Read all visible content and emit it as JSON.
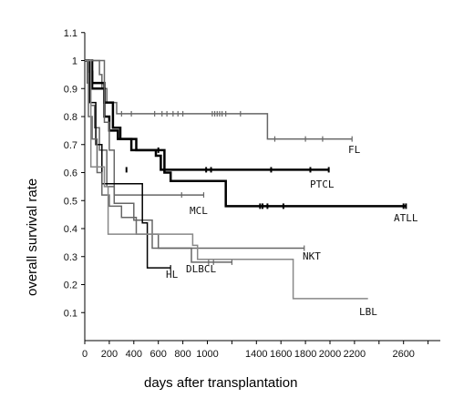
{
  "chart_data": {
    "type": "line",
    "xlabel": "days after transplantation",
    "ylabel": "overall survival rate",
    "xlim": [
      0,
      2900
    ],
    "ylim": [
      0,
      1.1
    ],
    "x_ticks": [
      0,
      200,
      400,
      600,
      800,
      1000,
      1400,
      1600,
      1800,
      2000,
      2200,
      2600
    ],
    "y_ticks": [
      0.1,
      0.2,
      0.3,
      0.4,
      0.5,
      0.6,
      0.7,
      0.8,
      0.9,
      1,
      1.1
    ],
    "x_tick_labels": [
      "0",
      "200",
      "400",
      "600",
      "800",
      "1000",
      "1400",
      "1600",
      "1800",
      "2000",
      "2200",
      "2600"
    ],
    "y_tick_labels": [
      "0.1",
      "0.2",
      "0.3",
      "0.4",
      "0.5",
      "0.6",
      "0.7",
      "0.8",
      "0.9",
      "1",
      "1.1"
    ],
    "series": [
      {
        "name": "FL",
        "color": "#666666",
        "width": 1.5,
        "points": [
          [
            0,
            1
          ],
          [
            120,
            1
          ],
          [
            120,
            0.95
          ],
          [
            140,
            0.95
          ],
          [
            140,
            0.9
          ],
          [
            180,
            0.9
          ],
          [
            180,
            0.85
          ],
          [
            260,
            0.85
          ],
          [
            260,
            0.81
          ],
          [
            1490,
            0.81
          ],
          [
            1490,
            0.72
          ],
          [
            2180,
            0.72
          ]
        ],
        "censors": [
          [
            300,
            0.81
          ],
          [
            380,
            0.81
          ],
          [
            570,
            0.81
          ],
          [
            630,
            0.81
          ],
          [
            670,
            0.81
          ],
          [
            720,
            0.81
          ],
          [
            760,
            0.81
          ],
          [
            800,
            0.81
          ],
          [
            1040,
            0.81
          ],
          [
            1060,
            0.81
          ],
          [
            1080,
            0.81
          ],
          [
            1100,
            0.81
          ],
          [
            1120,
            0.81
          ],
          [
            1150,
            0.81
          ],
          [
            1270,
            0.81
          ],
          [
            1550,
            0.72
          ],
          [
            1800,
            0.72
          ],
          [
            1940,
            0.72
          ],
          [
            2180,
            0.72
          ]
        ]
      },
      {
        "name": "PTCL",
        "color": "#000000",
        "width": 2.5,
        "points": [
          [
            0,
            1
          ],
          [
            60,
            1
          ],
          [
            60,
            0.9
          ],
          [
            160,
            0.9
          ],
          [
            160,
            0.8
          ],
          [
            200,
            0.8
          ],
          [
            200,
            0.75
          ],
          [
            270,
            0.75
          ],
          [
            270,
            0.72
          ],
          [
            380,
            0.72
          ],
          [
            380,
            0.68
          ],
          [
            580,
            0.68
          ],
          [
            580,
            0.66
          ],
          [
            620,
            0.66
          ],
          [
            620,
            0.61
          ],
          [
            1990,
            0.61
          ]
        ],
        "censors": [
          [
            340,
            0.61
          ],
          [
            650,
            0.61
          ],
          [
            990,
            0.61
          ],
          [
            1030,
            0.61
          ],
          [
            1520,
            0.61
          ],
          [
            1840,
            0.61
          ],
          [
            1990,
            0.61
          ]
        ]
      },
      {
        "name": "ATLL",
        "color": "#000000",
        "width": 2.5,
        "points": [
          [
            0,
            1
          ],
          [
            30,
            1
          ],
          [
            30,
            0.96
          ],
          [
            60,
            0.96
          ],
          [
            60,
            0.92
          ],
          [
            160,
            0.92
          ],
          [
            160,
            0.85
          ],
          [
            230,
            0.85
          ],
          [
            230,
            0.76
          ],
          [
            290,
            0.76
          ],
          [
            290,
            0.72
          ],
          [
            420,
            0.72
          ],
          [
            420,
            0.68
          ],
          [
            650,
            0.68
          ],
          [
            650,
            0.6
          ],
          [
            700,
            0.6
          ],
          [
            700,
            0.57
          ],
          [
            1150,
            0.57
          ],
          [
            1150,
            0.48
          ],
          [
            2620,
            0.48
          ]
        ],
        "censors": [
          [
            600,
            0.68
          ],
          [
            1430,
            0.48
          ],
          [
            1450,
            0.48
          ],
          [
            1490,
            0.48
          ],
          [
            1620,
            0.48
          ],
          [
            2600,
            0.48
          ],
          [
            2620,
            0.48
          ]
        ]
      },
      {
        "name": "MCL",
        "color": "#666666",
        "width": 1.5,
        "points": [
          [
            0,
            1
          ],
          [
            20,
            1
          ],
          [
            20,
            0.92
          ],
          [
            50,
            0.92
          ],
          [
            50,
            0.84
          ],
          [
            80,
            0.84
          ],
          [
            80,
            0.76
          ],
          [
            120,
            0.76
          ],
          [
            120,
            0.68
          ],
          [
            180,
            0.68
          ],
          [
            180,
            0.55
          ],
          [
            240,
            0.55
          ],
          [
            240,
            0.52
          ],
          [
            970,
            0.52
          ]
        ],
        "censors": [
          [
            790,
            0.52
          ],
          [
            970,
            0.52
          ]
        ]
      },
      {
        "name": "NKT",
        "color": "#666666",
        "width": 1.5,
        "points": [
          [
            0,
            1
          ],
          [
            160,
            1
          ],
          [
            160,
            0.78
          ],
          [
            200,
            0.78
          ],
          [
            200,
            0.68
          ],
          [
            240,
            0.68
          ],
          [
            240,
            0.49
          ],
          [
            400,
            0.49
          ],
          [
            400,
            0.43
          ],
          [
            550,
            0.43
          ],
          [
            550,
            0.33
          ],
          [
            1790,
            0.33
          ]
        ],
        "censors": [
          [
            1790,
            0.33
          ]
        ]
      },
      {
        "name": "HL",
        "color": "#000000",
        "width": 1.5,
        "points": [
          [
            0,
            1
          ],
          [
            40,
            1
          ],
          [
            40,
            0.85
          ],
          [
            90,
            0.85
          ],
          [
            90,
            0.7
          ],
          [
            140,
            0.7
          ],
          [
            140,
            0.56
          ],
          [
            470,
            0.56
          ],
          [
            470,
            0.42
          ],
          [
            510,
            0.42
          ],
          [
            510,
            0.26
          ],
          [
            700,
            0.26
          ]
        ],
        "censors": [
          [
            700,
            0.26
          ]
        ]
      },
      {
        "name": "DLBCL",
        "color": "#666666",
        "width": 1.5,
        "points": [
          [
            0,
            1
          ],
          [
            30,
            1
          ],
          [
            30,
            0.8
          ],
          [
            60,
            0.8
          ],
          [
            60,
            0.72
          ],
          [
            100,
            0.72
          ],
          [
            100,
            0.6
          ],
          [
            140,
            0.6
          ],
          [
            140,
            0.52
          ],
          [
            200,
            0.52
          ],
          [
            200,
            0.48
          ],
          [
            300,
            0.48
          ],
          [
            300,
            0.44
          ],
          [
            420,
            0.44
          ],
          [
            420,
            0.38
          ],
          [
            600,
            0.38
          ],
          [
            600,
            0.33
          ],
          [
            870,
            0.33
          ],
          [
            870,
            0.28
          ],
          [
            1200,
            0.28
          ]
        ],
        "censors": [
          [
            1010,
            0.28
          ],
          [
            1050,
            0.28
          ],
          [
            1200,
            0.28
          ]
        ]
      },
      {
        "name": "LBL",
        "color": "#888888",
        "width": 1.5,
        "points": [
          [
            0,
            1
          ],
          [
            50,
            1
          ],
          [
            50,
            0.62
          ],
          [
            160,
            0.62
          ],
          [
            160,
            0.55
          ],
          [
            190,
            0.55
          ],
          [
            190,
            0.38
          ],
          [
            880,
            0.38
          ],
          [
            880,
            0.34
          ],
          [
            920,
            0.34
          ],
          [
            920,
            0.29
          ],
          [
            1700,
            0.29
          ],
          [
            1700,
            0.15
          ],
          [
            2310,
            0.15
          ]
        ],
        "censors": []
      }
    ]
  },
  "labels": {
    "FL": "FL",
    "PTCL": "PTCL",
    "ATLL": "ATLL",
    "MCL": "MCL",
    "NKT": "NKT",
    "HL": "HL",
    "DLBCL": "DLBCL",
    "LBL": "LBL"
  }
}
